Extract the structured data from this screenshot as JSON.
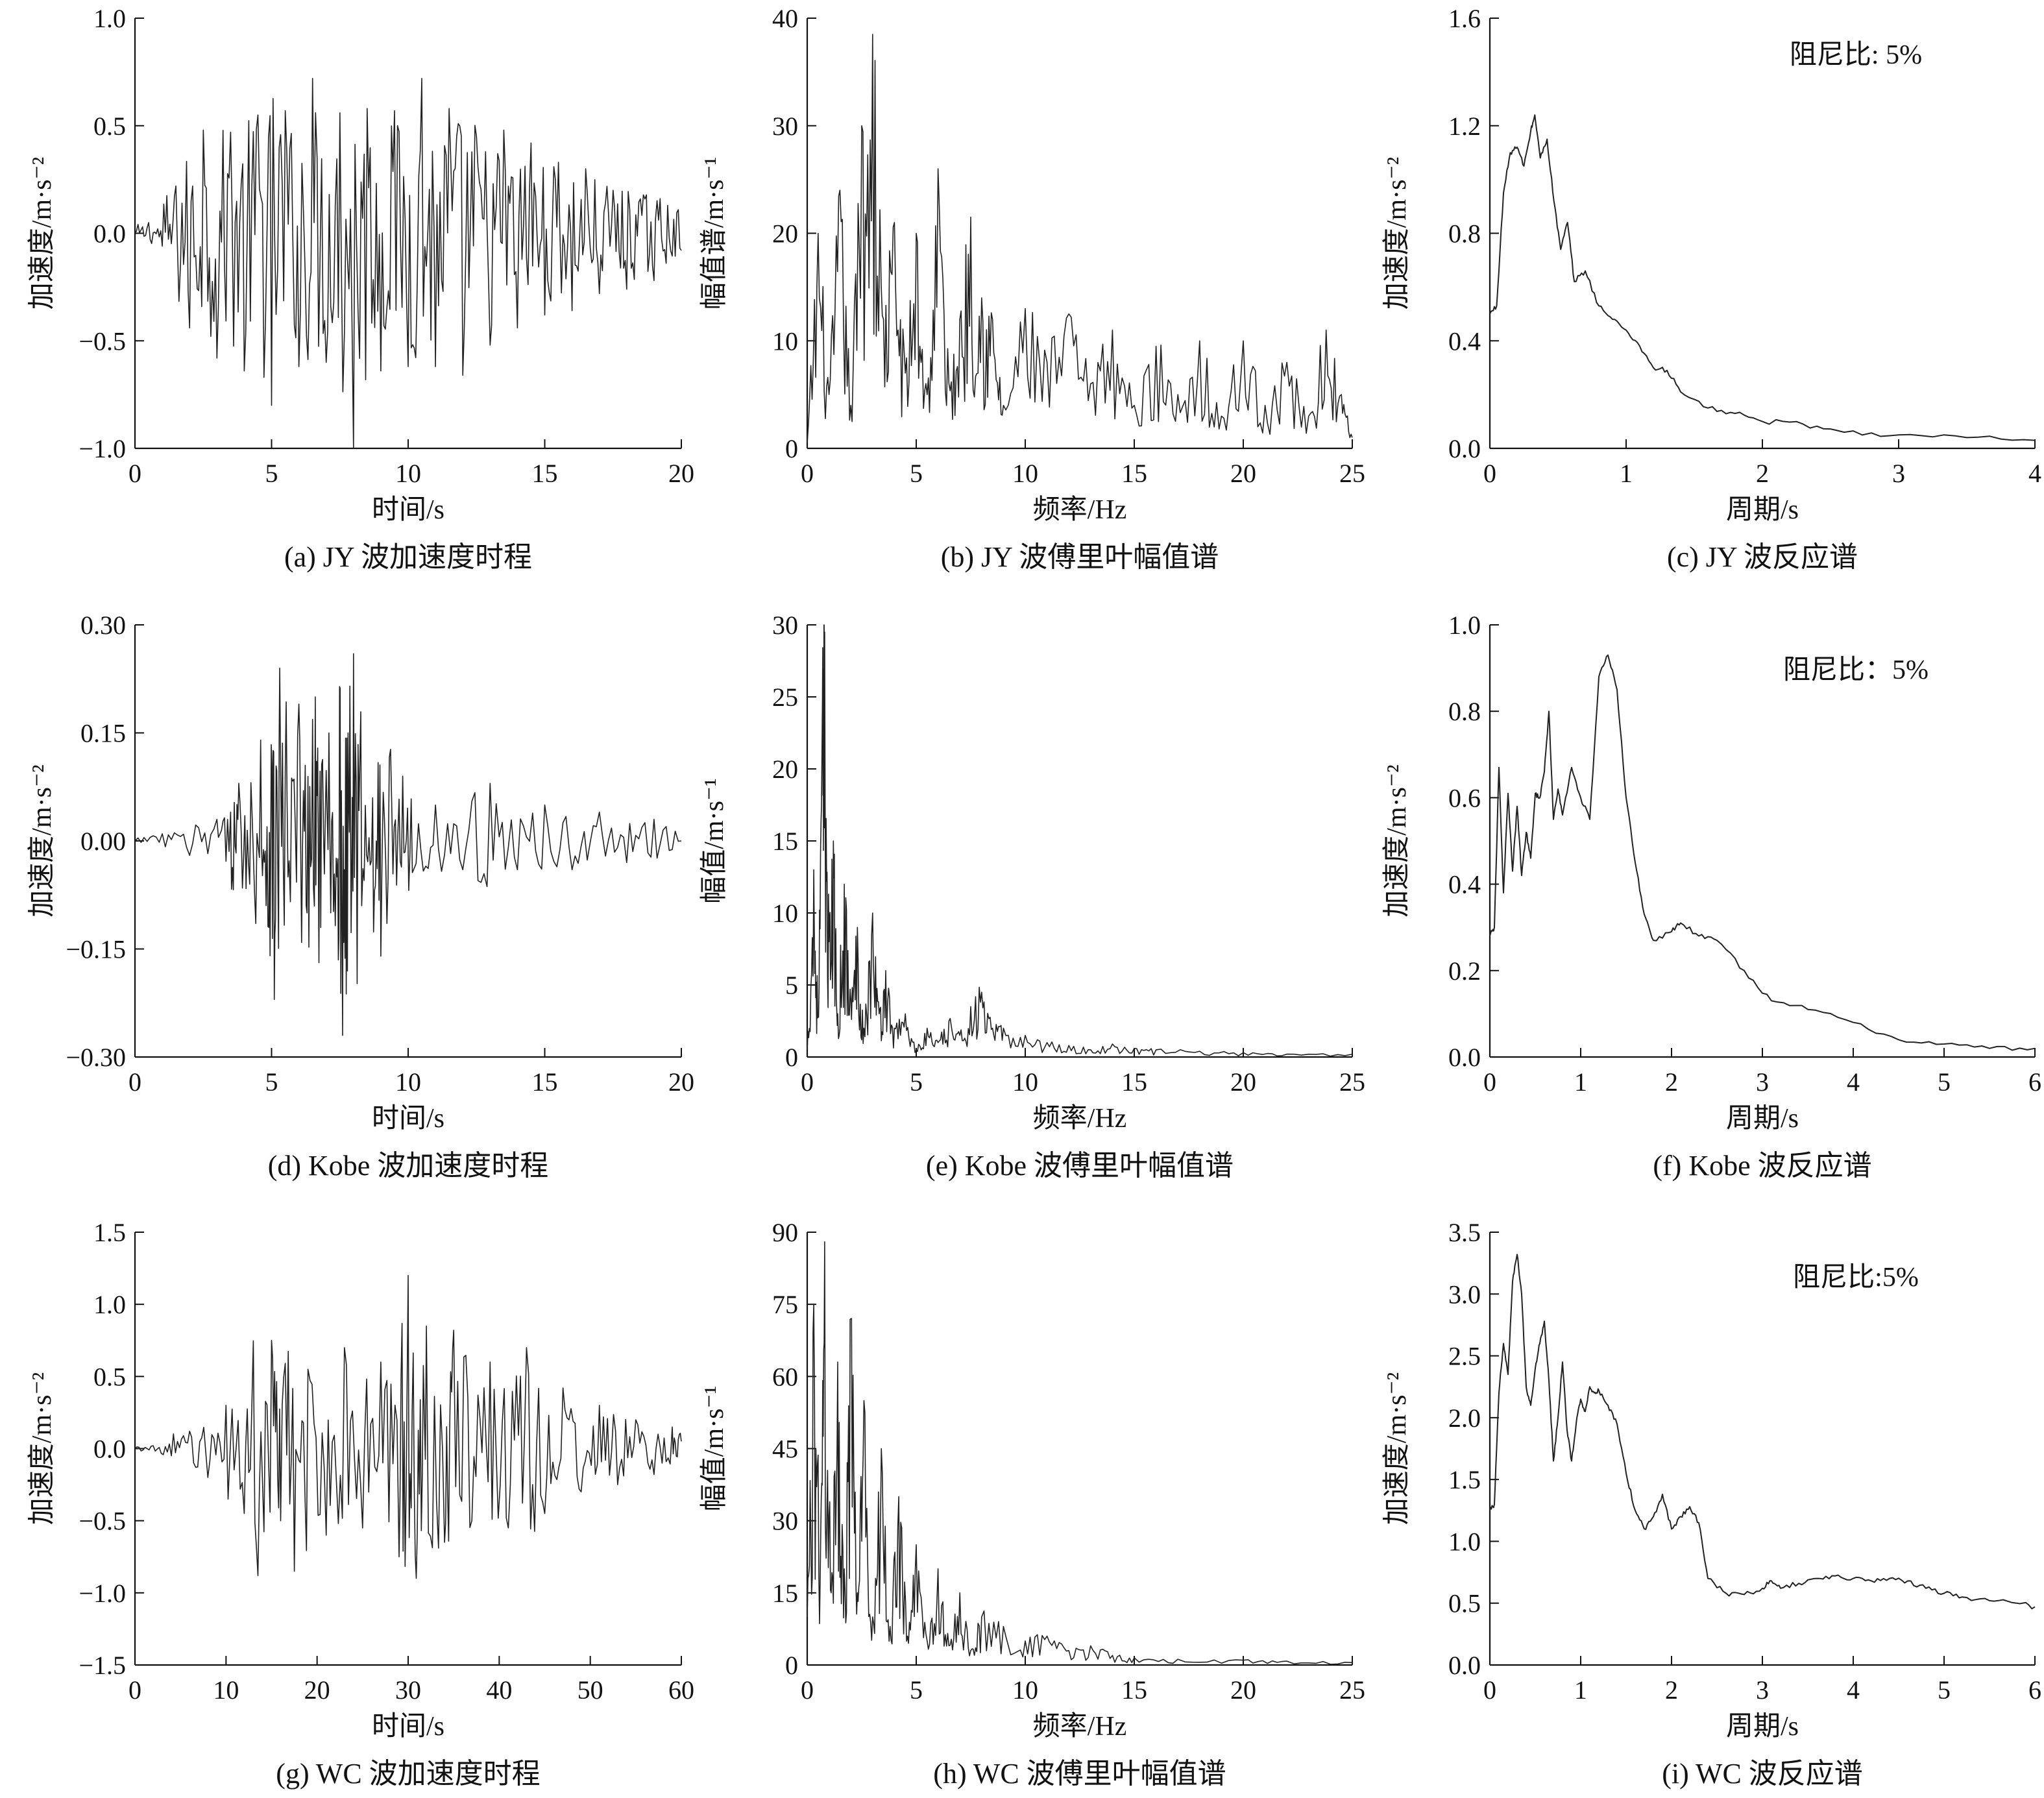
{
  "chart_data": [
    {
      "id": "a",
      "type": "line",
      "caption": "(a) JY 波加速度时程",
      "xlabel": "时间/s",
      "ylabel": "加速度/m·s⁻²",
      "xlim": [
        0,
        20
      ],
      "ylim": [
        -1.0,
        1.0
      ],
      "xticks": [
        0,
        5,
        10,
        15,
        20
      ],
      "yticks": [
        -1.0,
        -0.5,
        0.0,
        0.5,
        1.0
      ],
      "ytick_labels": [
        "−1.0",
        "−0.5",
        "0.0",
        "0.5",
        "1.0"
      ],
      "annotation": "",
      "series": [
        {
          "x": [
            0,
            0.5,
            1.0,
            1.5,
            2.0,
            2.5,
            3.0,
            3.5,
            4.0,
            4.5,
            5.0,
            5.5,
            6.0,
            6.5,
            7.0,
            7.5,
            8.0,
            8.5,
            9.0,
            9.5,
            10.0,
            10.5,
            11.0,
            11.5,
            12.0,
            12.5,
            13.0,
            13.5,
            14.0,
            14.5,
            15.0,
            15.5,
            16.0,
            16.5,
            17.0,
            17.5,
            18.0,
            18.5,
            19.0,
            19.5,
            20.0
          ],
          "y": [
            0.0,
            0.05,
            -0.06,
            0.22,
            -0.44,
            0.48,
            -0.58,
            0.47,
            -0.64,
            0.55,
            -0.8,
            0.57,
            -0.62,
            0.72,
            -0.6,
            0.56,
            -1.0,
            0.58,
            -0.64,
            0.57,
            -0.62,
            0.72,
            -0.62,
            0.58,
            -0.66,
            0.45,
            -0.52,
            0.48,
            -0.44,
            0.42,
            -0.38,
            0.33,
            -0.36,
            0.3,
            -0.28,
            0.2,
            -0.26,
            0.16,
            -0.22,
            0.13,
            -0.08
          ]
        }
      ]
    },
    {
      "id": "b",
      "type": "line",
      "caption": "(b) JY 波傅里叶幅值谱",
      "xlabel": "频率/Hz",
      "ylabel": "幅值谱/m·s⁻¹",
      "xlim": [
        0,
        25
      ],
      "ylim": [
        0,
        40
      ],
      "xticks": [
        0,
        5,
        10,
        15,
        20,
        25
      ],
      "yticks": [
        0,
        10,
        20,
        30,
        40
      ],
      "ytick_labels": [
        "0",
        "10",
        "20",
        "30",
        "40"
      ],
      "annotation": "",
      "series": [
        {
          "x": [
            0,
            0.5,
            1.0,
            1.5,
            2.0,
            2.5,
            3.0,
            3.5,
            4.0,
            4.5,
            5.0,
            5.5,
            6.0,
            6.5,
            7.0,
            7.5,
            8.0,
            8.5,
            9.0,
            10.0,
            11.0,
            12.0,
            13.0,
            14.0,
            15.0,
            16.0,
            17.0,
            18.0,
            19.0,
            20.0,
            21.0,
            22.0,
            23.0,
            23.8,
            24.5,
            25.0
          ],
          "y": [
            0.5,
            20,
            5,
            24,
            4,
            30,
            38.5,
            12,
            21,
            7,
            20,
            5,
            26,
            6,
            12,
            21.5,
            14,
            12,
            4,
            13,
            8,
            12.5,
            6,
            11,
            4,
            9.5,
            5,
            10,
            3,
            10,
            4,
            8,
            3,
            11,
            5,
            1
          ]
        }
      ]
    },
    {
      "id": "c",
      "type": "line",
      "caption": "(c) JY 波反应谱",
      "xlabel": "周期/s",
      "ylabel": "加速度/m·s⁻²",
      "xlim": [
        0,
        4
      ],
      "ylim": [
        0,
        1.6
      ],
      "xticks": [
        0,
        1,
        2,
        3,
        4
      ],
      "yticks": [
        0.0,
        0.4,
        0.8,
        1.2,
        1.6
      ],
      "ytick_labels": [
        "0.0",
        "0.4",
        "0.8",
        "1.2",
        "1.6"
      ],
      "annotation": "阻尼比: 5%",
      "series": [
        {
          "x": [
            0,
            0.05,
            0.1,
            0.15,
            0.2,
            0.25,
            0.3,
            0.33,
            0.37,
            0.42,
            0.47,
            0.52,
            0.57,
            0.62,
            0.7,
            0.8,
            0.9,
            1.0,
            1.1,
            1.2,
            1.3,
            1.4,
            1.6,
            1.8,
            2.0,
            2.3,
            2.6,
            3.0,
            3.5,
            4.0
          ],
          "y": [
            0.5,
            0.53,
            0.95,
            1.1,
            1.12,
            1.05,
            1.18,
            1.24,
            1.08,
            1.15,
            0.92,
            0.74,
            0.84,
            0.62,
            0.66,
            0.53,
            0.48,
            0.44,
            0.38,
            0.3,
            0.29,
            0.21,
            0.15,
            0.13,
            0.1,
            0.09,
            0.06,
            0.05,
            0.04,
            0.03
          ]
        }
      ]
    },
    {
      "id": "d",
      "type": "line",
      "caption": "(d) Kobe 波加速度时程",
      "xlabel": "时间/s",
      "ylabel": "加速度/m·s⁻²",
      "xlim": [
        0,
        20
      ],
      "ylim": [
        -0.3,
        0.3
      ],
      "xticks": [
        0,
        5,
        10,
        15,
        20
      ],
      "yticks": [
        -0.3,
        -0.15,
        0.0,
        0.15,
        0.3
      ],
      "ytick_labels": [
        "−0.30",
        "−0.15",
        "0.00",
        "0.15",
        "0.30"
      ],
      "annotation": "",
      "series": [
        {
          "x": [
            0,
            1,
            2,
            3,
            3.5,
            3.8,
            4.2,
            4.6,
            4.9,
            5.1,
            5.3,
            5.6,
            6.0,
            6.3,
            6.6,
            6.8,
            7.1,
            7.4,
            7.6,
            7.8,
            8.0,
            8.3,
            8.7,
            9.0,
            9.4,
            9.8,
            10.2,
            11.0,
            12.0,
            13.0,
            14.0,
            15.0,
            16.0,
            17.0,
            18.0,
            19.0,
            20.0
          ],
          "y": [
            0.0,
            0.01,
            -0.02,
            0.03,
            0.04,
            0.08,
            -0.06,
            0.14,
            -0.12,
            -0.22,
            0.24,
            -0.05,
            0.19,
            -0.1,
            0.2,
            -0.12,
            0.15,
            -0.05,
            -0.27,
            0.15,
            0.26,
            -0.09,
            0.06,
            -0.16,
            0.05,
            0.09,
            -0.04,
            0.05,
            -0.04,
            0.08,
            -0.04,
            0.05,
            -0.04,
            0.04,
            -0.03,
            0.03,
            0.0
          ]
        }
      ]
    },
    {
      "id": "e",
      "type": "line",
      "caption": "(e) Kobe 波傅里叶幅值谱",
      "xlabel": "频率/Hz",
      "ylabel": "幅值/m·s⁻¹",
      "xlim": [
        0,
        25
      ],
      "ylim": [
        0,
        30
      ],
      "xticks": [
        0,
        5,
        10,
        15,
        20,
        25
      ],
      "yticks": [
        0,
        5,
        10,
        15,
        20,
        25,
        30
      ],
      "ytick_labels": [
        "0",
        "5",
        "10",
        "15",
        "20",
        "25",
        "30"
      ],
      "annotation": "",
      "series": [
        {
          "x": [
            0,
            0.3,
            0.5,
            0.7,
            0.8,
            1.0,
            1.2,
            1.4,
            1.7,
            2.0,
            2.3,
            2.6,
            3.0,
            3.3,
            3.6,
            4.0,
            4.5,
            5.0,
            5.5,
            6.0,
            6.5,
            7.0,
            7.5,
            8.0,
            8.5,
            9.0,
            10.0,
            11.0,
            12.0,
            13.0,
            14.0,
            15.0,
            16.0,
            18.0,
            20.0,
            22.0,
            25.0
          ],
          "y": [
            0.5,
            13,
            3,
            25,
            29.5,
            8,
            15,
            3,
            12,
            4,
            9,
            2,
            10,
            3,
            6,
            2,
            3,
            0.5,
            2,
            1,
            2.5,
            1.5,
            3.5,
            4.5,
            2,
            2,
            1.5,
            1.0,
            0.8,
            0.5,
            0.9,
            0.6,
            0.5,
            0.4,
            0.3,
            0.2,
            0.2
          ]
        }
      ]
    },
    {
      "id": "f",
      "type": "line",
      "caption": "(f) Kobe 波反应谱",
      "xlabel": "周期/s",
      "ylabel": "加速度/m·s⁻²",
      "xlim": [
        0,
        6
      ],
      "ylim": [
        0,
        1.0
      ],
      "xticks": [
        0,
        1,
        2,
        3,
        4,
        5,
        6
      ],
      "yticks": [
        0.0,
        0.2,
        0.4,
        0.6,
        0.8,
        1.0
      ],
      "ytick_labels": [
        "0.0",
        "0.2",
        "0.4",
        "0.6",
        "0.8",
        "1.0"
      ],
      "annotation": "阻尼比：5%",
      "series": [
        {
          "x": [
            0,
            0.05,
            0.1,
            0.15,
            0.2,
            0.25,
            0.3,
            0.35,
            0.4,
            0.45,
            0.5,
            0.55,
            0.6,
            0.65,
            0.7,
            0.75,
            0.8,
            0.9,
            1.0,
            1.1,
            1.2,
            1.3,
            1.4,
            1.5,
            1.6,
            1.7,
            1.8,
            2.0,
            2.1,
            2.3,
            2.5,
            2.8,
            3.1,
            3.5,
            4.0,
            4.5,
            5.0,
            5.5,
            6.0
          ],
          "y": [
            0.28,
            0.3,
            0.67,
            0.38,
            0.61,
            0.43,
            0.58,
            0.42,
            0.52,
            0.46,
            0.61,
            0.6,
            0.66,
            0.8,
            0.55,
            0.62,
            0.56,
            0.67,
            0.6,
            0.55,
            0.88,
            0.93,
            0.85,
            0.6,
            0.45,
            0.33,
            0.27,
            0.29,
            0.31,
            0.28,
            0.27,
            0.2,
            0.13,
            0.11,
            0.08,
            0.04,
            0.03,
            0.02,
            0.02
          ]
        }
      ]
    },
    {
      "id": "g",
      "type": "line",
      "caption": "(g) WC 波加速度时程",
      "xlabel": "时间/s",
      "ylabel": "加速度/m·s⁻²",
      "xlim": [
        0,
        60
      ],
      "ylim": [
        -1.5,
        1.5
      ],
      "xticks": [
        0,
        10,
        20,
        30,
        40,
        50,
        60
      ],
      "yticks": [
        -1.5,
        -1.0,
        -0.5,
        0.0,
        0.5,
        1.0,
        1.5
      ],
      "ytick_labels": [
        "−1.5",
        "−1.0",
        "−0.5",
        "0.0",
        "0.5",
        "1.0",
        "1.5"
      ],
      "annotation": "",
      "series": [
        {
          "x": [
            0,
            2,
            4,
            6,
            8,
            10,
            12,
            13.5,
            15,
            16,
            17.5,
            19,
            21,
            23,
            25,
            27,
            29,
            30,
            31,
            32,
            34,
            35,
            37,
            39,
            41,
            43,
            45,
            47,
            49,
            51,
            53,
            55,
            57,
            59,
            60
          ],
          "y": [
            0.0,
            0.02,
            -0.05,
            0.12,
            -0.2,
            0.3,
            -0.45,
            -0.88,
            0.75,
            -0.5,
            -0.85,
            0.55,
            -0.6,
            0.7,
            -0.55,
            0.6,
            -0.75,
            1.2,
            -0.6,
            0.85,
            -0.65,
            0.82,
            -0.5,
            0.6,
            -0.55,
            0.7,
            -0.45,
            0.42,
            -0.3,
            0.3,
            -0.25,
            0.2,
            -0.18,
            0.15,
            0.05
          ]
        }
      ]
    },
    {
      "id": "h",
      "type": "line",
      "caption": "(h) WC 波傅里叶幅值谱",
      "xlabel": "频率/Hz",
      "ylabel": "幅值/m·s⁻¹",
      "xlim": [
        0,
        25
      ],
      "ylim": [
        0,
        90
      ],
      "xticks": [
        0,
        5,
        10,
        15,
        20,
        25
      ],
      "yticks": [
        0,
        15,
        30,
        45,
        60,
        75,
        90
      ],
      "ytick_labels": [
        "0",
        "15",
        "30",
        "45",
        "60",
        "75",
        "90"
      ],
      "annotation": "",
      "series": [
        {
          "x": [
            0,
            0.3,
            0.6,
            0.8,
            1.1,
            1.4,
            1.7,
            2.0,
            2.3,
            2.6,
            3.0,
            3.4,
            3.8,
            4.2,
            4.6,
            5.0,
            5.5,
            6.0,
            6.5,
            7.0,
            7.5,
            8.0,
            9.0,
            10.0,
            11.0,
            12.0,
            13.0,
            14.0,
            15.0,
            17.0,
            20.0,
            22.0,
            25.0
          ],
          "y": [
            10,
            75,
            20,
            88,
            15,
            63,
            20,
            72,
            15,
            55,
            10,
            45,
            8,
            35,
            6,
            25,
            5,
            20,
            4,
            15,
            3,
            10,
            8,
            5,
            6,
            3,
            4,
            2,
            1.5,
            1.2,
            1.0,
            0.8,
            0.5
          ]
        }
      ]
    },
    {
      "id": "i",
      "type": "line",
      "caption": "(i) WC 波反应谱",
      "xlabel": "周期/s",
      "ylabel": "加速度/m·s⁻²",
      "xlim": [
        0,
        6
      ],
      "ylim": [
        0,
        3.5
      ],
      "xticks": [
        0,
        1,
        2,
        3,
        4,
        5,
        6
      ],
      "yticks": [
        0.0,
        0.5,
        1.0,
        1.5,
        2.0,
        2.5,
        3.0,
        3.5
      ],
      "ytick_labels": [
        "0.0",
        "0.5",
        "1.0",
        "1.5",
        "2.0",
        "2.5",
        "3.0",
        "3.5"
      ],
      "annotation": "阻尼比:5%",
      "series": [
        {
          "x": [
            0,
            0.05,
            0.1,
            0.15,
            0.2,
            0.25,
            0.3,
            0.35,
            0.4,
            0.45,
            0.5,
            0.55,
            0.6,
            0.65,
            0.7,
            0.75,
            0.8,
            0.85,
            0.9,
            0.95,
            1.0,
            1.05,
            1.1,
            1.15,
            1.2,
            1.3,
            1.4,
            1.5,
            1.6,
            1.7,
            1.8,
            1.9,
            2.0,
            2.1,
            2.2,
            2.3,
            2.4,
            2.6,
            2.8,
            3.0,
            3.1,
            3.2,
            3.4,
            3.6,
            3.8,
            4.0,
            4.2,
            4.4,
            4.6,
            4.8,
            5.0,
            5.2,
            5.5,
            5.8,
            6.0
          ],
          "y": [
            1.25,
            1.3,
            2.2,
            2.6,
            2.35,
            3.1,
            3.32,
            3.0,
            2.25,
            2.1,
            2.4,
            2.6,
            2.78,
            2.3,
            1.65,
            2.0,
            2.45,
            1.9,
            1.65,
            1.95,
            2.15,
            2.05,
            2.25,
            2.2,
            2.22,
            2.1,
            1.95,
            1.55,
            1.25,
            1.1,
            1.2,
            1.38,
            1.1,
            1.2,
            1.28,
            1.15,
            0.7,
            0.58,
            0.57,
            0.62,
            0.68,
            0.62,
            0.66,
            0.7,
            0.72,
            0.7,
            0.68,
            0.7,
            0.68,
            0.62,
            0.58,
            0.55,
            0.52,
            0.5,
            0.47
          ]
        }
      ]
    }
  ]
}
